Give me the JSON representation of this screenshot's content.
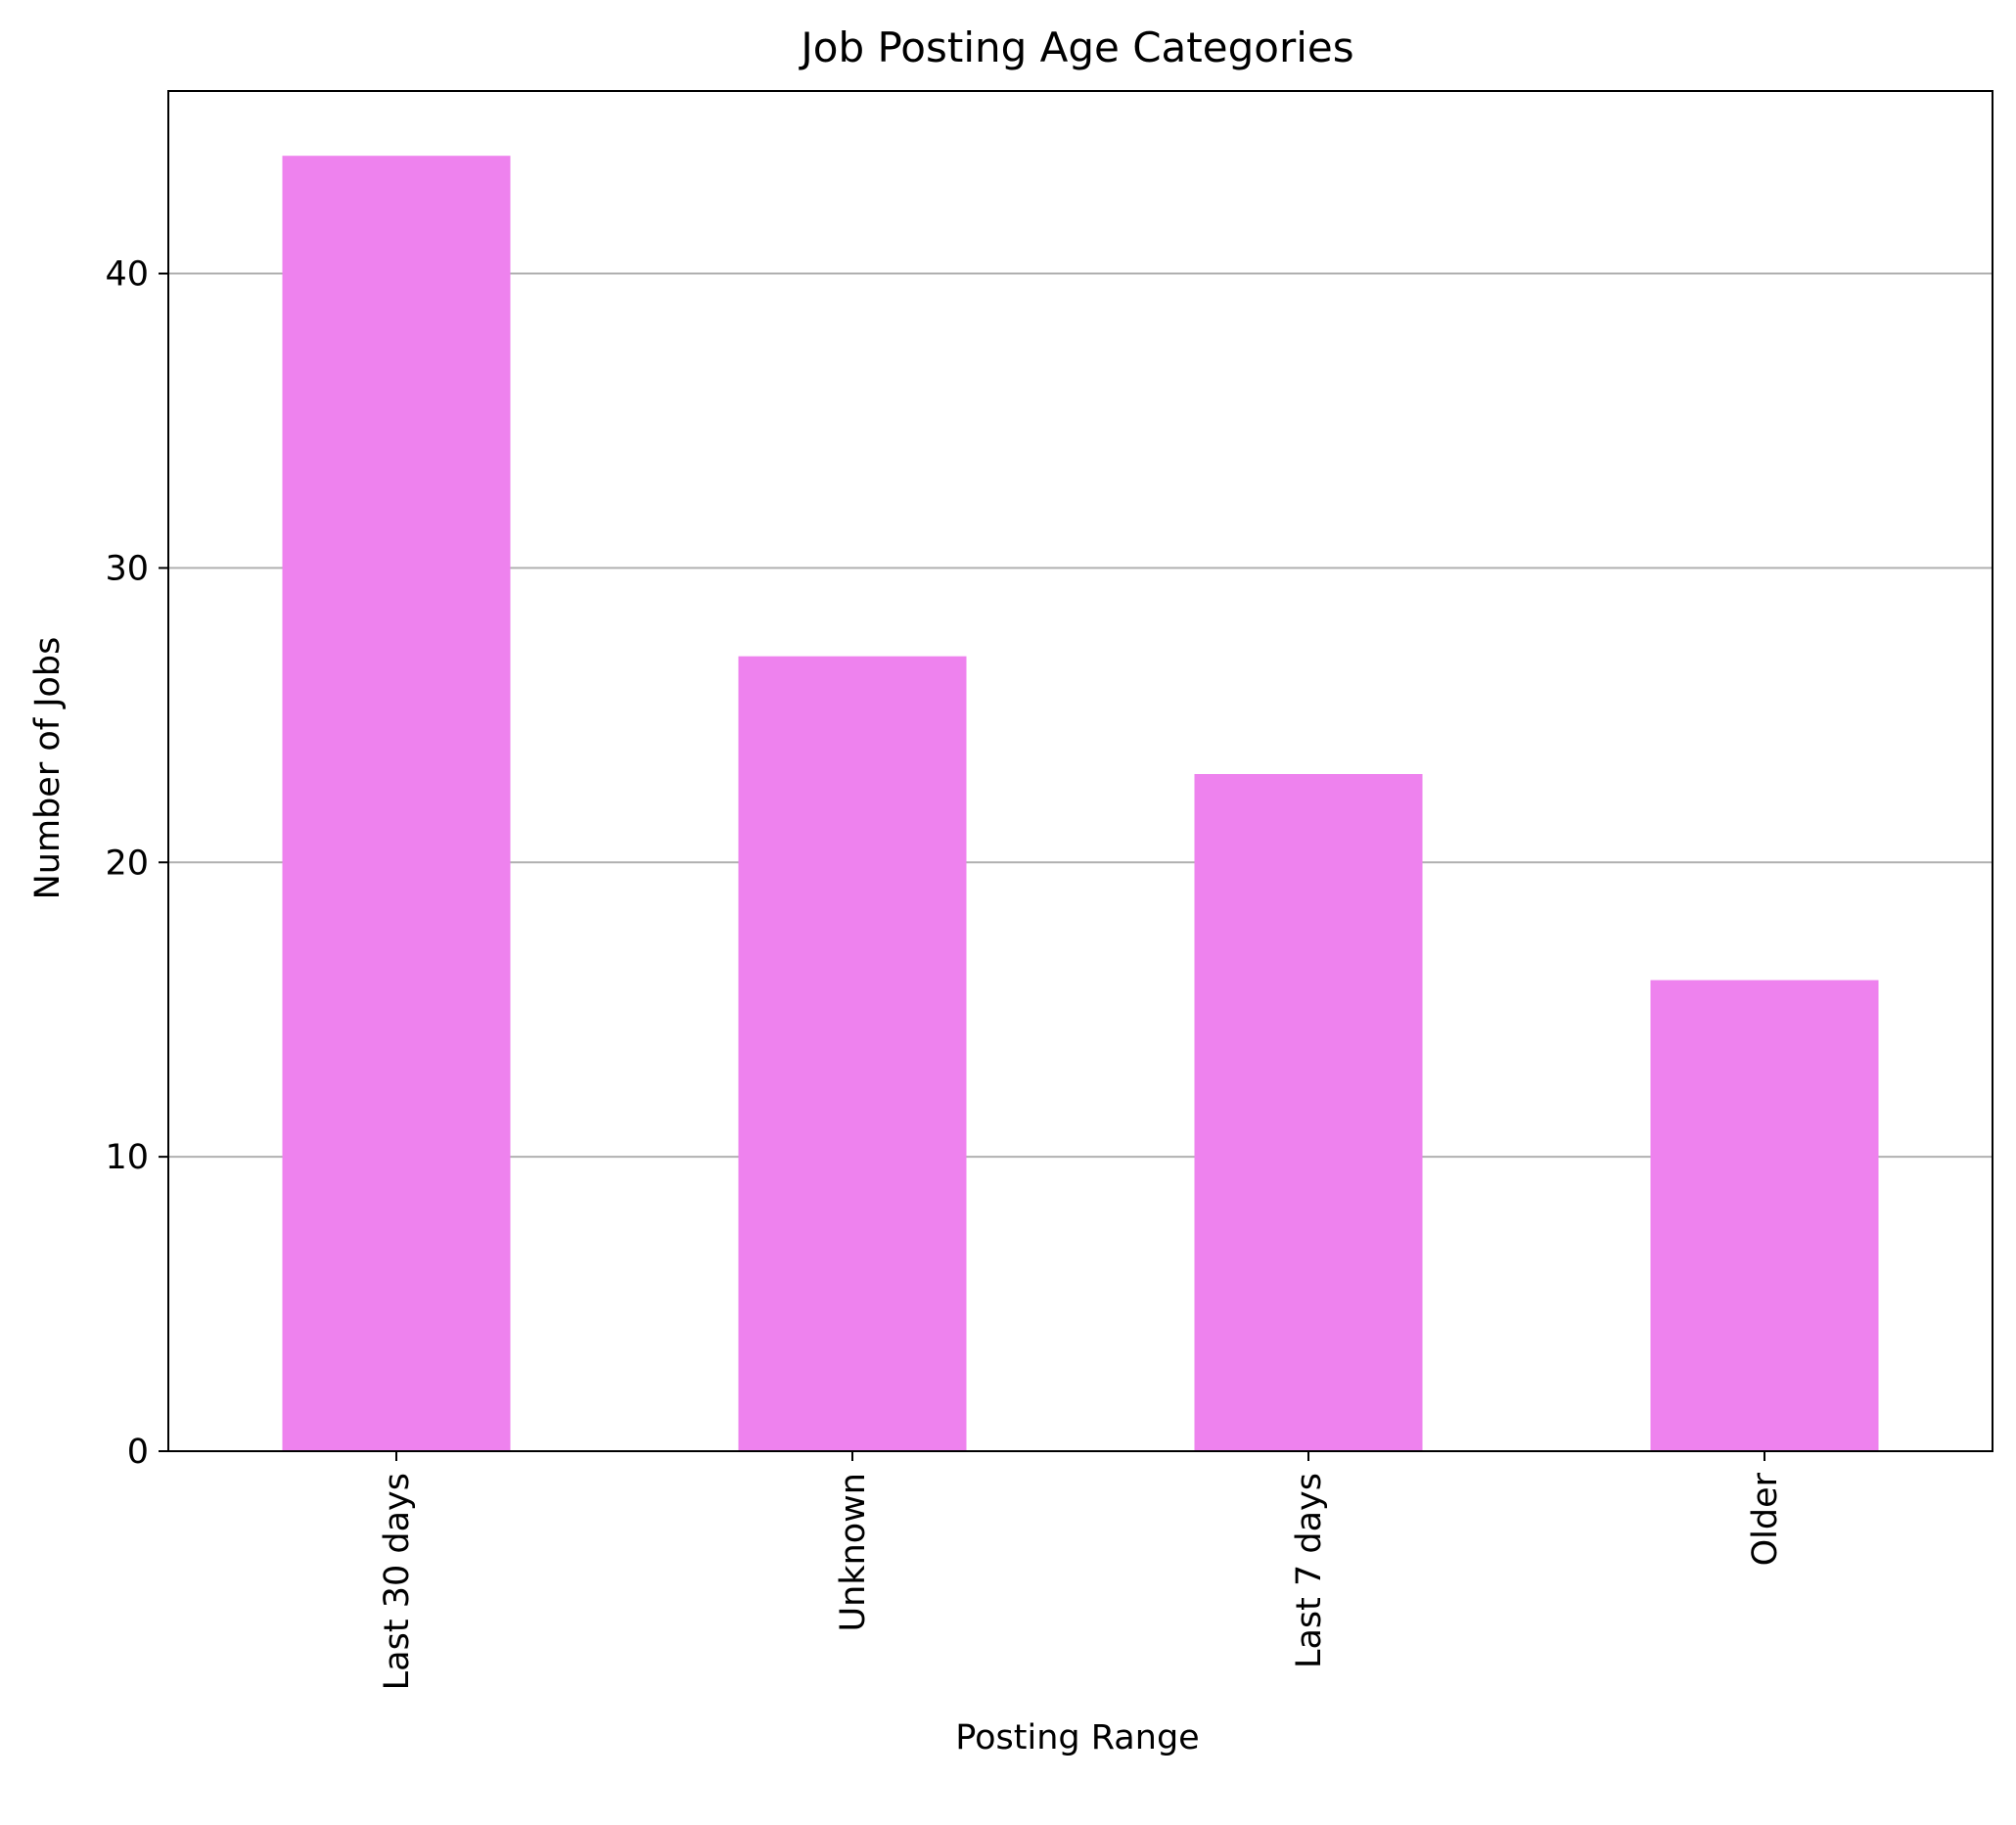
{
  "chart_data": {
    "type": "bar",
    "title": "Job Posting Age Categories",
    "xlabel": "Posting Range",
    "ylabel": "Number of Jobs",
    "categories": [
      "Last 30 days",
      "Unknown",
      "Last 7 days",
      "Older"
    ],
    "values": [
      44,
      27,
      23,
      16
    ],
    "ylim": [
      0,
      46.2
    ],
    "yticks": [
      "0",
      "10",
      "20",
      "30",
      "40"
    ],
    "grid": "y-axis only",
    "bar_color": "#ee82ee",
    "grid_color": "#b0b0b0",
    "x_tick_rotation": "vertical"
  }
}
